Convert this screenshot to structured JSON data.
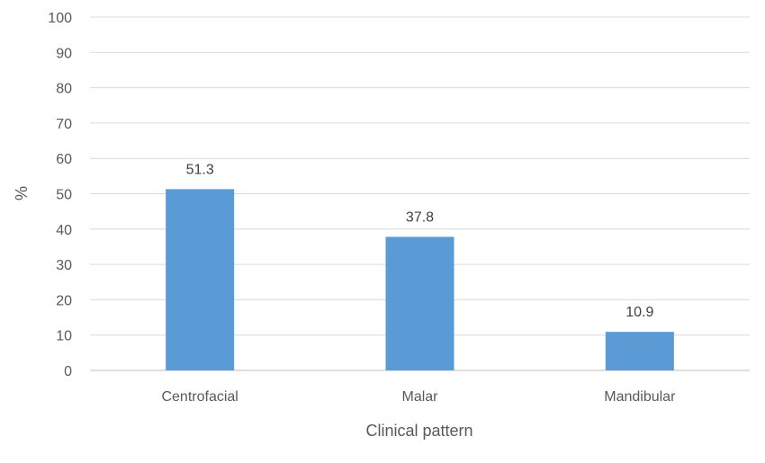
{
  "chart_data": {
    "type": "bar",
    "categories": [
      "Centrofacial",
      "Malar",
      "Mandibular"
    ],
    "values": [
      51.3,
      37.8,
      10.9
    ],
    "data_labels": [
      "51.3",
      "37.8",
      "10.9"
    ],
    "title": "",
    "xlabel": "Clinical pattern",
    "ylabel": "%",
    "ylim": [
      0,
      100
    ],
    "yticks": [
      "0",
      "10",
      "20",
      "30",
      "40",
      "50",
      "60",
      "70",
      "80",
      "90",
      "100"
    ],
    "grid": true,
    "legend": "none",
    "bar_color": "#5b9bd5"
  }
}
